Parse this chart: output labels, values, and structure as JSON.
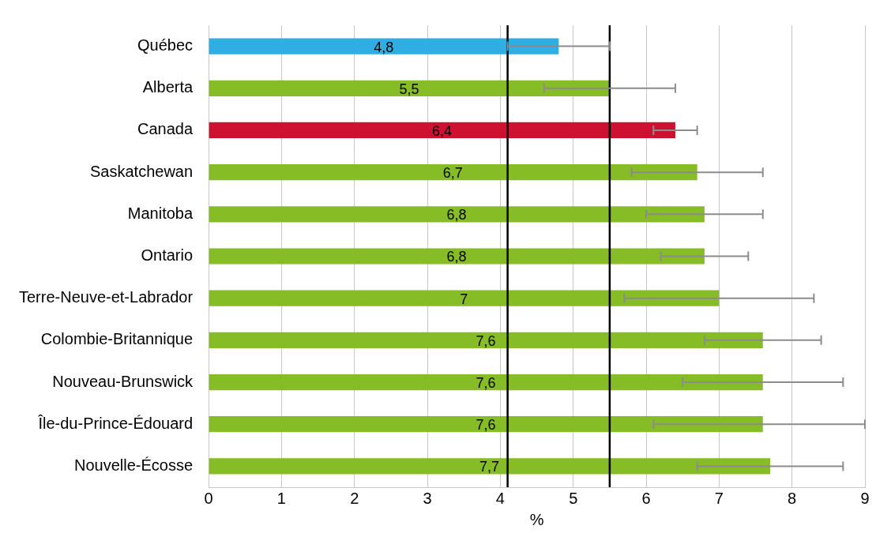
{
  "chart_data": {
    "type": "bar",
    "orientation": "horizontal",
    "xlabel": "%",
    "categories": [
      "Québec",
      "Alberta",
      "Canada",
      "Saskatchewan",
      "Manitoba",
      "Ontario",
      "Terre-Neuve-et-Labrador",
      "Colombie-Britannique",
      "Nouveau-Brunswick",
      "Île-du-Prince-Édouard",
      "Nouvelle-Écosse"
    ],
    "values": [
      4.8,
      5.5,
      6.4,
      6.7,
      6.8,
      6.8,
      7,
      7.6,
      7.6,
      7.6,
      7.7
    ],
    "colors": [
      "#2eaee3",
      "#86bc25",
      "#cc1230",
      "#86bc25",
      "#86bc25",
      "#86bc25",
      "#86bc25",
      "#86bc25",
      "#86bc25",
      "#86bc25",
      "#86bc25"
    ],
    "value_labels": [
      "4,8",
      "5,5",
      "6,4",
      "6,7",
      "6,8",
      "6,8",
      "7",
      "7,6",
      "7,6",
      "7,6",
      "7,7"
    ],
    "errors": [
      [
        4.1,
        5.5
      ],
      [
        4.6,
        6.4
      ],
      [
        6.1,
        6.7
      ],
      [
        5.8,
        7.6
      ],
      [
        6.0,
        7.6
      ],
      [
        6.2,
        7.4
      ],
      [
        5.7,
        8.3
      ],
      [
        6.8,
        8.4
      ],
      [
        6.5,
        8.7
      ],
      [
        6.1,
        9
      ],
      [
        6.7,
        8.7
      ]
    ],
    "xlim": [
      0,
      9
    ],
    "xticks": [
      0,
      1,
      2,
      3,
      4,
      5,
      6,
      7,
      8,
      9
    ],
    "grid": "x",
    "legend": false,
    "ref_lines": [
      {
        "axis": "x",
        "value": 4.1,
        "color": "#000000"
      },
      {
        "axis": "x",
        "value": 5.5,
        "color": "#000000"
      }
    ]
  }
}
